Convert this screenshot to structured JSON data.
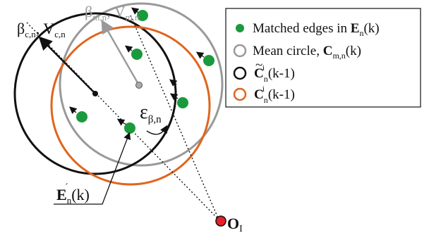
{
  "colors": {
    "matched_dot": "#1a9a3c",
    "mean_circle": "#999999",
    "dark_circle": "#111111",
    "orange_circle": "#e0651c",
    "origin_fill": "#e8202a"
  },
  "labels": {
    "beta_c": "β",
    "beta_c_sub": "c,n",
    "v_c": "V",
    "v_c_sub": "c,n",
    "beta_m": "β",
    "beta_m_sub": "m,n",
    "v_m": "V",
    "v_m_sub": "m,n",
    "epsilon": "ε",
    "epsilon_sub": "β,n",
    "e_prime": "E",
    "e_prime_sub": "n",
    "e_prime_tail": "(k)",
    "origin": "O",
    "origin_sub": "I"
  },
  "legend": {
    "items": [
      {
        "text": "Matched edges in ",
        "bold": "E",
        "sub": "n",
        "tail": "(k)",
        "marker": "dot"
      },
      {
        "text": "Mean circle, ",
        "bold": "C",
        "sub": "m,n",
        "tail": "(k)",
        "marker": "gray-ring"
      },
      {
        "text": "",
        "bold": "C",
        "sub": "n",
        "sup": "i",
        "tail": " (k-1)",
        "marker": "black-ring",
        "tilde": "~"
      },
      {
        "text": "",
        "bold": "C",
        "sub": "n",
        "sup": "i",
        "tail": " (k-1)",
        "marker": "orange-ring"
      }
    ]
  }
}
